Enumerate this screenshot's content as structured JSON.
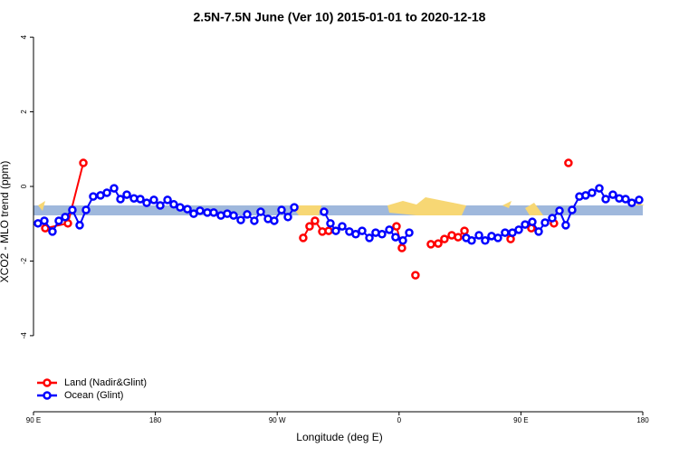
{
  "chart_data": {
    "type": "line",
    "title": "2.5N-7.5N June (Ver 10)   2015-01-01 to 2020-12-18",
    "x_label": "Longitude (deg E)",
    "y_label": "XCO2 - MLO trend (ppm)",
    "xlim": [
      90,
      540
    ],
    "ylim": [
      -6.04,
      4.27
    ],
    "xticks": [
      {
        "value": 90,
        "label": "90 E"
      },
      {
        "value": 180,
        "label": "180"
      },
      {
        "value": 270,
        "label": "90 W"
      },
      {
        "value": 360,
        "label": "0"
      },
      {
        "value": 450,
        "label": "90 E"
      },
      {
        "value": 540,
        "label": "180"
      }
    ],
    "yticks": [
      4,
      2,
      0,
      -2,
      -4
    ],
    "legend": "bottomleft",
    "series": [
      {
        "name": "Land (Nadir&Glint)",
        "color": "#ff0000",
        "x": [
          98.7,
          115.4,
          126.8,
          null,
          289.2,
          293.9,
          297.9,
          303.3,
          308.0,
          null,
          358.1,
          362.1,
          null,
          372.1,
          null,
          383.5,
          388.9,
          393.5,
          398.9,
          403.6,
          408.3,
          null,
          442.4,
          null,
          457.7,
          null,
          474.4,
          null,
          485.1
        ],
        "values": [
          -1.12,
          -0.99,
          0.63,
          null,
          -1.38,
          -1.07,
          -0.92,
          -1.21,
          -1.19,
          null,
          -1.07,
          -1.65,
          null,
          -2.38,
          null,
          -1.55,
          -1.53,
          -1.41,
          -1.31,
          -1.36,
          -1.19,
          null,
          -1.41,
          null,
          -1.12,
          null,
          -0.99,
          null,
          0.63
        ]
      },
      {
        "name": "Ocean (Glint)",
        "color": "#0000ff",
        "x": [
          93.3,
          98.0,
          104.0,
          108.7,
          113.4,
          118.7,
          124.1,
          128.8,
          134.1,
          139.5,
          144.2,
          149.5,
          154.2,
          158.9,
          164.2,
          168.9,
          173.6,
          178.9,
          183.6,
          189.0,
          193.6,
          198.3,
          203.7,
          208.3,
          213.0,
          218.4,
          223.1,
          228.4,
          233.1,
          237.8,
          243.1,
          247.8,
          253.1,
          257.8,
          263.2,
          267.8,
          273.2,
          277.9,
          282.6,
          null,
          304.6,
          309.3,
          313.3,
          318.0,
          323.3,
          328.0,
          332.7,
          338.1,
          342.7,
          347.4,
          352.8,
          357.4,
          362.8,
          367.5,
          null,
          409.6,
          413.6,
          419.0,
          423.6,
          428.3,
          433.0,
          438.3,
          443.7,
          448.4,
          453.1,
          458.4,
          463.1,
          467.8,
          473.1,
          478.5,
          483.1,
          487.8,
          493.2,
          497.8,
          502.5,
          507.9,
          512.6,
          517.9,
          522.6,
          527.3,
          531.9,
          537.3
        ],
        "values": [
          -0.99,
          -0.92,
          -1.21,
          -0.92,
          -0.82,
          -0.63,
          -1.04,
          -0.63,
          -0.27,
          -0.24,
          -0.17,
          -0.05,
          -0.34,
          -0.22,
          -0.32,
          -0.34,
          -0.44,
          -0.36,
          -0.51,
          -0.36,
          -0.48,
          -0.56,
          -0.61,
          -0.73,
          -0.65,
          -0.7,
          -0.7,
          -0.78,
          -0.73,
          -0.78,
          -0.9,
          -0.75,
          -0.92,
          -0.68,
          -0.87,
          -0.92,
          -0.63,
          -0.82,
          -0.56,
          null,
          -0.68,
          -0.99,
          -1.19,
          -1.07,
          -1.21,
          -1.28,
          -1.19,
          -1.38,
          -1.24,
          -1.28,
          -1.16,
          -1.36,
          -1.45,
          -1.24,
          null,
          -1.38,
          -1.45,
          -1.31,
          -1.45,
          -1.33,
          -1.38,
          -1.24,
          -1.24,
          -1.16,
          -1.02,
          -0.95,
          -1.21,
          -0.97,
          -0.85,
          -0.65,
          -1.04,
          -0.63,
          -0.27,
          -0.24,
          -0.17,
          -0.05,
          -0.34,
          -0.22,
          -0.32,
          -0.34,
          -0.44,
          -0.36
        ]
      }
    ]
  }
}
